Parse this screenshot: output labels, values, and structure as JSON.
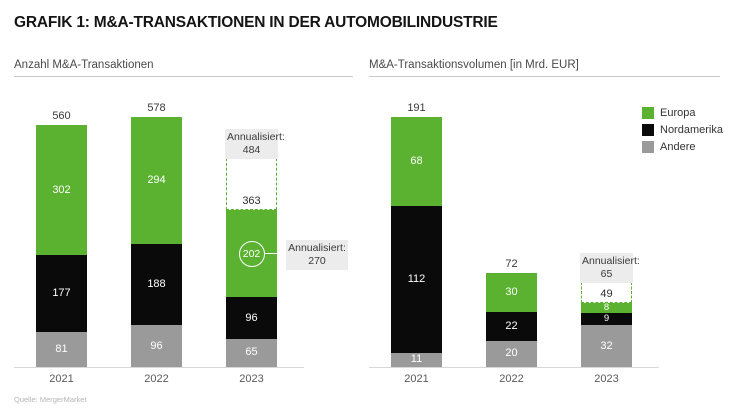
{
  "title": "GRAFIK 1: M&A-TRANSAKTIONEN IN DER AUTOMOBILINDUSTRIE",
  "source": "Quelle: MergerMarket",
  "colors": {
    "europa": "#5bb231",
    "nordamerika": "#0a0a0a",
    "andere": "#9a9a9a",
    "annotation_box_bg": "#ececec",
    "dashed_outline": "#5bb231",
    "axis": "#d8d8d8"
  },
  "legend": [
    {
      "label": "Europa",
      "color": "#5bb231"
    },
    {
      "label": "Nordamerika",
      "color": "#0a0a0a"
    },
    {
      "label": "Andere",
      "color": "#9a9a9a"
    }
  ],
  "chart_data": [
    {
      "type": "bar",
      "stacked": true,
      "title": "Anzahl M&A-Transaktionen",
      "categories": [
        "2021",
        "2022",
        "2023"
      ],
      "series": [
        {
          "name": "Europa",
          "values": [
            302,
            294,
            202
          ]
        },
        {
          "name": "Nordamerika",
          "values": [
            177,
            188,
            96
          ]
        },
        {
          "name": "Andere",
          "values": [
            81,
            96,
            65
          ]
        }
      ],
      "totals": [
        560,
        578,
        363
      ],
      "ylim": [
        0,
        578
      ],
      "grid": false,
      "annualized": {
        "category": "2023",
        "label": "Annualisiert:",
        "value": 484,
        "shown_solid_total": 363
      },
      "callout": {
        "category": "2023",
        "series": "Europa",
        "segment_value": 202,
        "label": "Annualisiert:",
        "annualized_value": 270
      }
    },
    {
      "type": "bar",
      "stacked": true,
      "title": "M&A-Transaktionsvolumen [in Mrd. EUR]",
      "categories": [
        "2021",
        "2022",
        "2023"
      ],
      "series": [
        {
          "name": "Europa",
          "values": [
            68,
            30,
            8
          ]
        },
        {
          "name": "Nordamerika",
          "values": [
            112,
            22,
            9
          ]
        },
        {
          "name": "Andere",
          "values": [
            11,
            20,
            32
          ]
        }
      ],
      "totals": [
        191,
        72,
        49
      ],
      "ylim": [
        0,
        191
      ],
      "grid": false,
      "legend_position": "top-right",
      "annualized": {
        "category": "2023",
        "label": "Annualisiert:",
        "value": 65,
        "shown_solid_total": 49
      }
    }
  ]
}
